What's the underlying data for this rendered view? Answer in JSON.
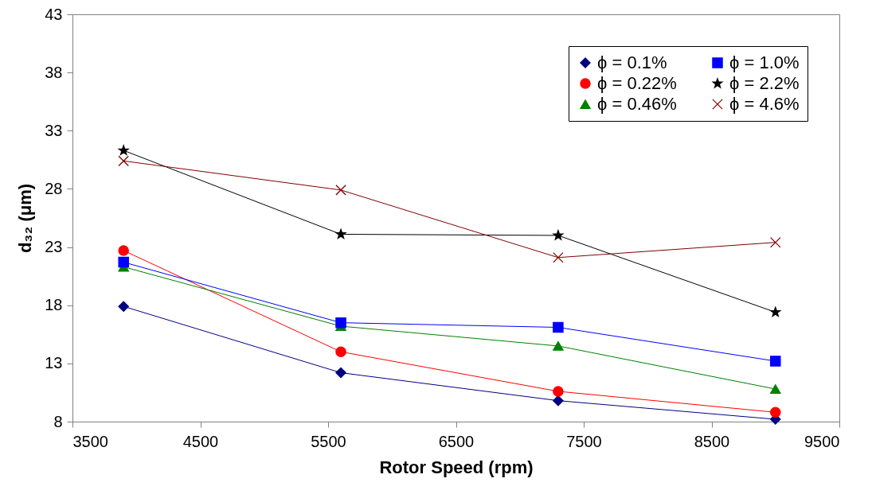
{
  "chart_data": {
    "type": "line",
    "xlabel": "Rotor Speed (rpm)",
    "ylabel": "d₃₂ (μm)",
    "xlim": [
      3500,
      9500
    ],
    "ylim": [
      8,
      43
    ],
    "xticks": [
      3500,
      4500,
      5500,
      6500,
      7500,
      8500,
      9500
    ],
    "yticks": [
      8,
      13,
      18,
      23,
      28,
      33,
      38,
      43
    ],
    "x": [
      3900,
      5600,
      7300,
      9000
    ],
    "legend": "top right",
    "series": [
      {
        "name": "ϕ = 0.1%",
        "color": "#000080",
        "marker": "diamond",
        "values": [
          17.9,
          12.2,
          9.8,
          8.2
        ]
      },
      {
        "name": "ϕ = 0.22%",
        "color": "#ff0000",
        "marker": "circle",
        "values": [
          22.7,
          14.0,
          10.6,
          8.8
        ]
      },
      {
        "name": "ϕ = 0.46%",
        "color": "#008000",
        "marker": "triangle",
        "values": [
          21.3,
          16.2,
          14.5,
          10.8
        ]
      },
      {
        "name": "ϕ = 1.0%",
        "color": "#0000ff",
        "marker": "square",
        "values": [
          21.7,
          16.5,
          16.1,
          13.2
        ]
      },
      {
        "name": "ϕ = 2.2%",
        "color": "#000000",
        "marker": "star",
        "values": [
          31.3,
          24.1,
          24.0,
          17.4
        ]
      },
      {
        "name": "ϕ = 4.6%",
        "color": "#800000",
        "marker": "cross",
        "values": [
          30.4,
          27.9,
          22.1,
          23.4
        ]
      }
    ]
  }
}
